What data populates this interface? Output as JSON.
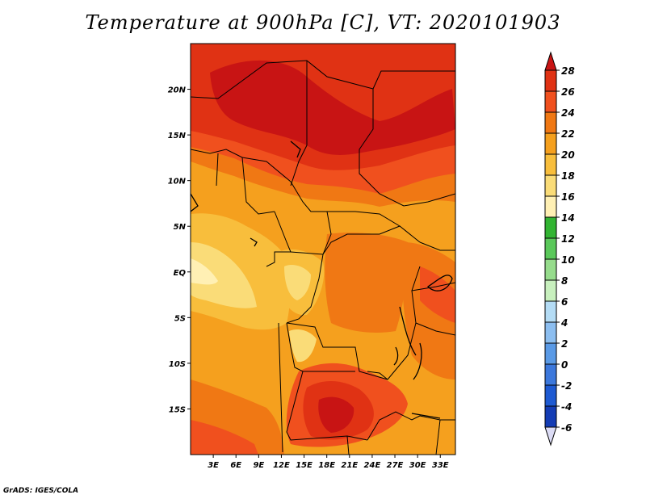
{
  "title": "Temperature at 900hPa [C], VT: 2020101903",
  "footer": "GrADS: IGES/COLA",
  "map": {
    "lon_range": [
      0,
      35
    ],
    "lat_range": [
      -20,
      25
    ],
    "lat_ticks": [
      {
        "value": 20,
        "label": "20N"
      },
      {
        "value": 15,
        "label": "15N"
      },
      {
        "value": 10,
        "label": "10N"
      },
      {
        "value": 5,
        "label": "5N"
      },
      {
        "value": 0,
        "label": "EQ"
      },
      {
        "value": -5,
        "label": "5S"
      },
      {
        "value": -10,
        "label": "10S"
      },
      {
        "value": -15,
        "label": "15S"
      }
    ],
    "lon_ticks": [
      {
        "value": 3,
        "label": "3E"
      },
      {
        "value": 6,
        "label": "6E"
      },
      {
        "value": 9,
        "label": "9E"
      },
      {
        "value": 12,
        "label": "12E"
      },
      {
        "value": 15,
        "label": "15E"
      },
      {
        "value": 18,
        "label": "18E"
      },
      {
        "value": 21,
        "label": "21E"
      },
      {
        "value": 24,
        "label": "24E"
      },
      {
        "value": 27,
        "label": "27E"
      },
      {
        "value": 30,
        "label": "30E"
      },
      {
        "value": 33,
        "label": "33E"
      }
    ]
  },
  "colorbar": {
    "labels": [
      "28",
      "26",
      "24",
      "22",
      "20",
      "18",
      "16",
      "14",
      "12",
      "10",
      "8",
      "6",
      "4",
      "2",
      "0",
      "-2",
      "-4",
      "-6"
    ],
    "colors": [
      "#c81414",
      "#e03214",
      "#f0501e",
      "#f07814",
      "#f5a01e",
      "#f8be3c",
      "#fadc78",
      "#fff0b4",
      "#32b432",
      "#5ac85a",
      "#96dc8c",
      "#c8f0be",
      "#b4dcf5",
      "#8cbef0",
      "#5a9ae6",
      "#3c78dc",
      "#1e5ad2",
      "#143cb4",
      "#0a1e8c",
      "#dcdcf5"
    ]
  }
}
